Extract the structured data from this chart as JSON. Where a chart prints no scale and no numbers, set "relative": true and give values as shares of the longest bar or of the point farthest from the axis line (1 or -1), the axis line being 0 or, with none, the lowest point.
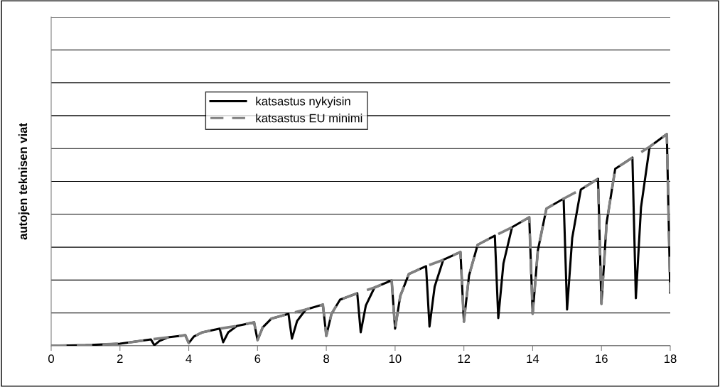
{
  "chart_data": {
    "type": "line",
    "relative": true,
    "ylabel": "autojen teknisen viat",
    "xlim": [
      0,
      18
    ],
    "xticks": [
      0,
      2,
      4,
      6,
      8,
      10,
      12,
      14,
      16,
      18
    ],
    "grid": "y",
    "legend": "top left",
    "marker": "none",
    "series": [
      {
        "name": "katsastus nykyisin",
        "color": "#000000",
        "line_style": "solid",
        "x": [
          0,
          1,
          2,
          2.9,
          3,
          3.15,
          3.4,
          3.9,
          4,
          4.15,
          4.4,
          4.9,
          5,
          5.15,
          5.4,
          5.9,
          6,
          6.15,
          6.4,
          6.9,
          7,
          7.15,
          7.4,
          7.9,
          8,
          8.15,
          8.4,
          8.9,
          9,
          9.15,
          9.4,
          9.9,
          10,
          10.15,
          10.4,
          10.9,
          11,
          11.15,
          11.4,
          11.9,
          12,
          12.15,
          12.4,
          12.9,
          13,
          13.15,
          13.4,
          13.9,
          14,
          14.15,
          14.4,
          14.9,
          15,
          15.15,
          15.4,
          15.9,
          16,
          16.15,
          16.4,
          16.9,
          17,
          17.15,
          17.4,
          17.9,
          18
        ],
        "values": [
          0,
          0.003,
          0.01,
          0.03,
          0.003,
          0.023,
          0.04,
          0.05,
          0.013,
          0.044,
          0.064,
          0.081,
          0.017,
          0.064,
          0.094,
          0.111,
          0.027,
          0.087,
          0.128,
          0.151,
          0.034,
          0.117,
          0.171,
          0.195,
          0.047,
          0.151,
          0.218,
          0.248,
          0.064,
          0.191,
          0.275,
          0.309,
          0.081,
          0.235,
          0.339,
          0.376,
          0.091,
          0.279,
          0.406,
          0.443,
          0.114,
          0.332,
          0.477,
          0.52,
          0.131,
          0.389,
          0.56,
          0.607,
          0.151,
          0.45,
          0.648,
          0.695,
          0.171,
          0.51,
          0.738,
          0.789,
          0.198,
          0.581,
          0.836,
          0.889,
          0.225,
          0.654,
          0.94,
          1,
          0.252
        ]
      },
      {
        "name": "katsastus EU minimi",
        "color": "#808080",
        "line_style": "dashed",
        "x": [
          0,
          1,
          2,
          2.9,
          3.4,
          3.9,
          4,
          4.15,
          4.4,
          4.9,
          5.4,
          5.9,
          6,
          6.15,
          6.4,
          6.9,
          7.4,
          7.9,
          8,
          8.15,
          8.4,
          8.9,
          9.4,
          9.9,
          10,
          10.15,
          10.4,
          10.9,
          11.4,
          11.9,
          12,
          12.15,
          12.4,
          12.9,
          13.4,
          13.9,
          14,
          14.15,
          14.4,
          14.9,
          15.4,
          15.9,
          16,
          16.15,
          16.4,
          16.9,
          17.4,
          17.9,
          18
        ],
        "values": [
          0,
          0.003,
          0.01,
          0.03,
          0.04,
          0.05,
          0.013,
          0.044,
          0.064,
          0.081,
          0.094,
          0.111,
          0.027,
          0.087,
          0.128,
          0.151,
          0.171,
          0.195,
          0.047,
          0.151,
          0.218,
          0.248,
          0.275,
          0.309,
          0.081,
          0.235,
          0.339,
          0.376,
          0.406,
          0.443,
          0.114,
          0.332,
          0.477,
          0.52,
          0.56,
          0.607,
          0.151,
          0.45,
          0.648,
          0.695,
          0.738,
          0.789,
          0.198,
          0.581,
          0.836,
          0.889,
          0.94,
          1,
          0.252
        ]
      }
    ]
  }
}
